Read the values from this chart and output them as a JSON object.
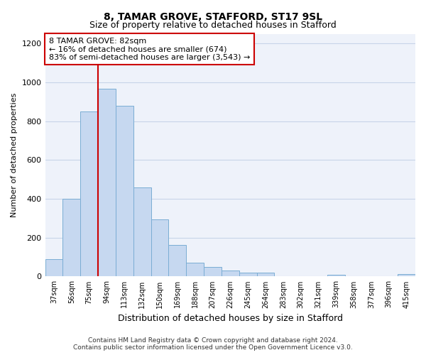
{
  "title": "8, TAMAR GROVE, STAFFORD, ST17 9SL",
  "subtitle": "Size of property relative to detached houses in Stafford",
  "xlabel": "Distribution of detached houses by size in Stafford",
  "ylabel": "Number of detached properties",
  "categories": [
    "37sqm",
    "56sqm",
    "75sqm",
    "94sqm",
    "113sqm",
    "132sqm",
    "150sqm",
    "169sqm",
    "188sqm",
    "207sqm",
    "226sqm",
    "245sqm",
    "264sqm",
    "283sqm",
    "302sqm",
    "321sqm",
    "339sqm",
    "358sqm",
    "377sqm",
    "396sqm",
    "415sqm"
  ],
  "values": [
    90,
    400,
    848,
    965,
    880,
    460,
    295,
    163,
    70,
    50,
    30,
    20,
    20,
    0,
    0,
    0,
    10,
    0,
    0,
    0,
    13
  ],
  "bar_color": "#c6d8f0",
  "bar_edge_color": "#7aadd4",
  "annotation_line_color": "#cc0000",
  "annotation_text_line1": "8 TAMAR GROVE: 82sqm",
  "annotation_text_line2": "← 16% of detached houses are smaller (674)",
  "annotation_text_line3": "83% of semi-detached houses are larger (3,543) →",
  "annotation_box_color": "#cc0000",
  "ylim": [
    0,
    1250
  ],
  "yticks": [
    0,
    200,
    400,
    600,
    800,
    1000,
    1200
  ],
  "grid_color": "#c8d4e8",
  "background_color": "#eef2fa",
  "footer1": "Contains HM Land Registry data © Crown copyright and database right 2024.",
  "footer2": "Contains public sector information licensed under the Open Government Licence v3.0."
}
